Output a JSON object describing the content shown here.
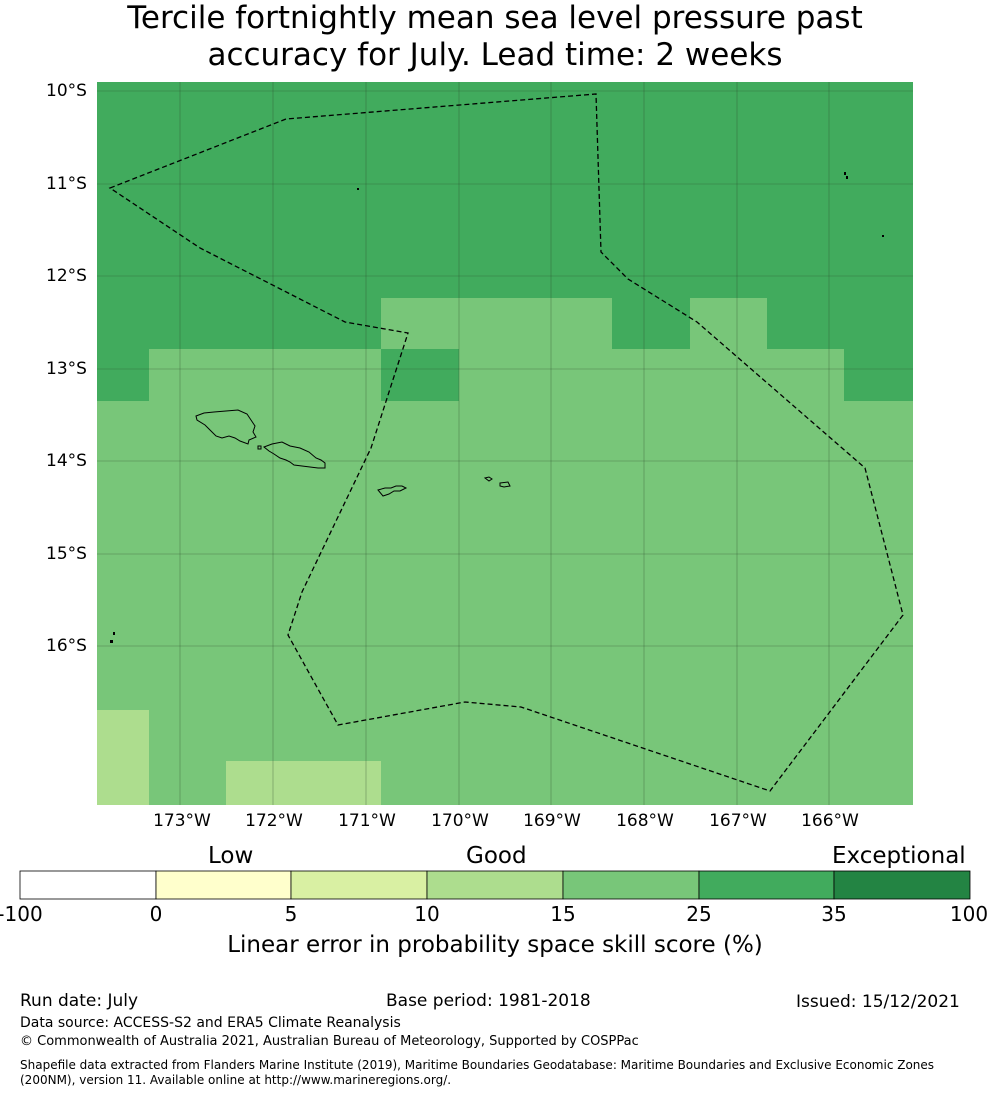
{
  "title": {
    "line1": "Tercile fortnightly mean sea level pressure past",
    "line2": "accuracy for July. Lead time: 2 weeks"
  },
  "map": {
    "lat_labels": [
      "10°S",
      "11°S",
      "12°S",
      "13°S",
      "14°S",
      "15°S",
      "16°S"
    ],
    "lon_labels": [
      "173°W",
      "172°W",
      "171°W",
      "170°W",
      "169°W",
      "168°W",
      "167°W",
      "166°W"
    ],
    "colors": {
      "band_25_35": "#41ab5d",
      "band_15_25": "#78c679",
      "band_10_15": "#addd8e",
      "grid_line": "#333333",
      "boundary_line": "#000000"
    },
    "features": [
      "skill-score-grid",
      "exclusive-economic-zone-boundary",
      "samoa-coastlines",
      "american-samoa-coastlines",
      "swains-island",
      "tokelau-atolls"
    ]
  },
  "colorbar": {
    "category_labels": [
      "Low",
      "Good",
      "Exceptional"
    ],
    "ticks": [
      "-100",
      "0",
      "5",
      "10",
      "15",
      "25",
      "35",
      "100"
    ],
    "colors": [
      "#ffffff",
      "#ffffcc",
      "#d9f0a3",
      "#addd8e",
      "#78c679",
      "#41ab5d",
      "#238443"
    ],
    "label": "Linear error in probability space skill score (%)"
  },
  "footer": {
    "run_date": "Run date: July",
    "base_period": "Base period: 1981-2018",
    "issued": "Issued: 15/12/2021",
    "data_source": "Data source: ACCESS-S2 and ERA5 Climate Reanalysis",
    "copyright": "© Commonwealth of Australia 2021, Australian Bureau of Meteorology, Supported by COSPPac",
    "shapefile": "Shapefile data extracted from Flanders Marine Institute (2019), Maritime Boundaries Geodatabase: Maritime Boundaries and Exclusive Economic Zones (200NM), version 11. Available online at http://www.marineregions.org/."
  }
}
